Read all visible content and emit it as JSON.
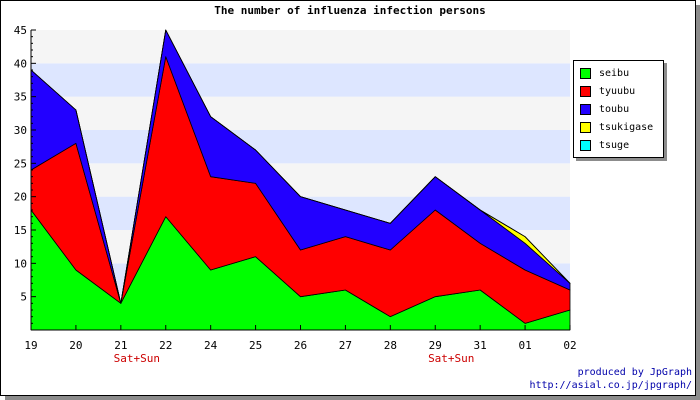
{
  "chart_data": {
    "type": "area",
    "stacked": true,
    "title": "The number of influenza infection persons",
    "categories": [
      "19",
      "20",
      "21",
      "22",
      "24",
      "25",
      "26",
      "27",
      "28",
      "29",
      "31",
      "01",
      "02"
    ],
    "category_notes": [
      {
        "category": "21",
        "label": "Sat+Sun"
      },
      {
        "category": "29",
        "label": "Sat+Sun"
      }
    ],
    "ylim": [
      0,
      45
    ],
    "yticks": [
      5,
      10,
      15,
      20,
      25,
      30,
      35,
      40,
      45
    ],
    "series": [
      {
        "name": "seibu",
        "color": "#00ff00",
        "values": [
          18,
          9,
          4,
          17,
          9,
          11,
          5,
          6,
          2,
          5,
          6,
          1,
          3
        ]
      },
      {
        "name": "tyuubu",
        "color": "#ff0000",
        "values": [
          6,
          19,
          0,
          24,
          14,
          11,
          7,
          8,
          10,
          13,
          7,
          8,
          3
        ]
      },
      {
        "name": "toubu",
        "color": "#2200ff",
        "values": [
          15,
          5,
          0,
          4,
          9,
          5,
          8,
          4,
          4,
          5,
          5,
          4,
          1
        ]
      },
      {
        "name": "tsukigase",
        "color": "#ffff00",
        "values": [
          0,
          0,
          0,
          0,
          0,
          0,
          0,
          0,
          0,
          0,
          0,
          1,
          0
        ]
      },
      {
        "name": "tsuge",
        "color": "#00ffff",
        "values": [
          0,
          0,
          0,
          0,
          0,
          0,
          0,
          0,
          0,
          0,
          0,
          0,
          0
        ]
      }
    ],
    "background_bands": {
      "light": "#f5f5f5",
      "accent": "#dde6ff"
    },
    "legend_position": "right",
    "grid": "horizontal bands"
  },
  "credit": {
    "line1": "produced by JpGraph",
    "line2": "http://asial.co.jp/jpgraph/"
  }
}
